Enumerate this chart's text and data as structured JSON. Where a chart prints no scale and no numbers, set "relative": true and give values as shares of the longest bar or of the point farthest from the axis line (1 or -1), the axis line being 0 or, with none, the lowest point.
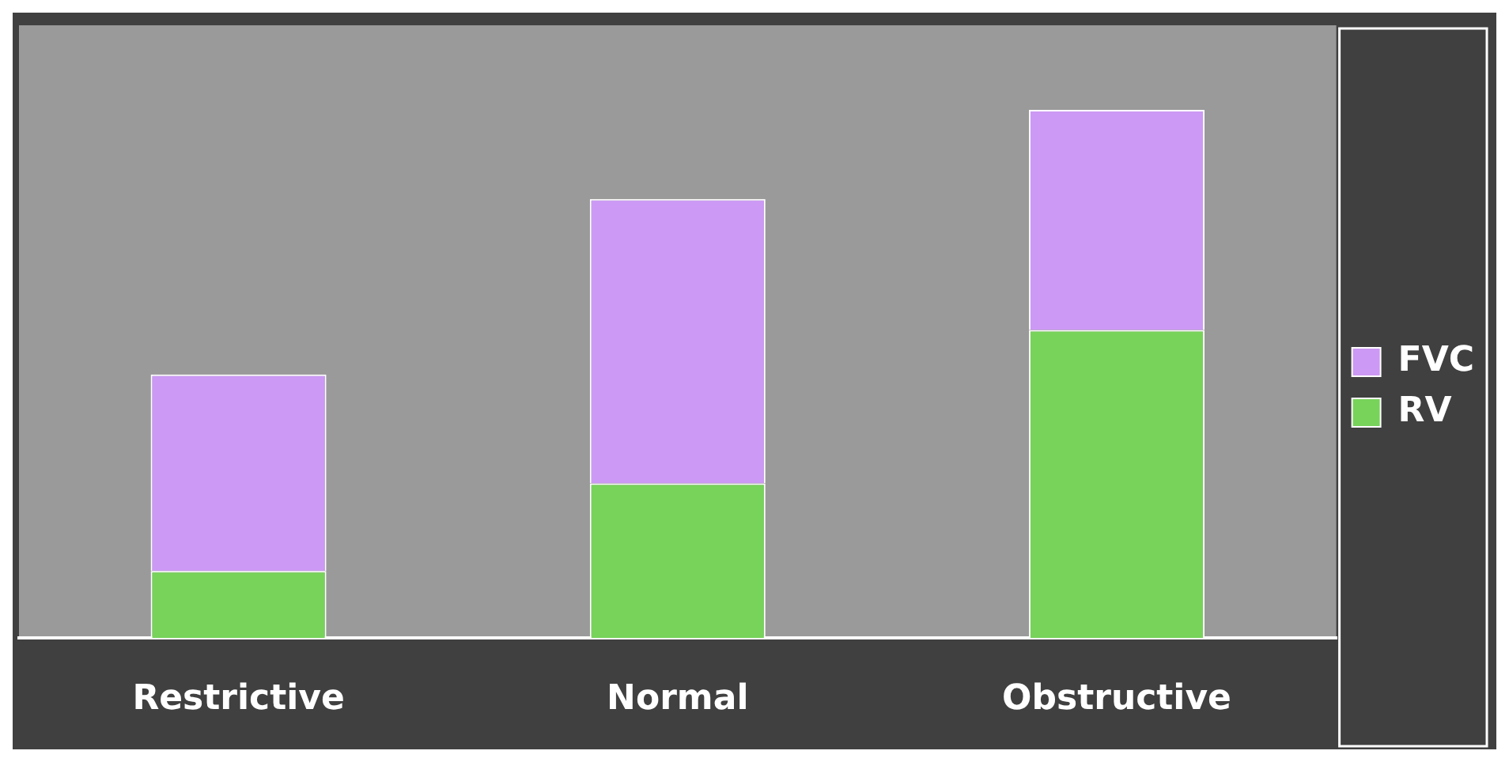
{
  "chart_data": {
    "type": "bar",
    "stacked": true,
    "relative": true,
    "legend": "right",
    "categories": [
      "Restrictive",
      "Normal",
      "Obstructive"
    ],
    "series": [
      {
        "name": "RV",
        "color": "#77d35a",
        "values": [
          0.127,
          0.293,
          0.583
        ]
      },
      {
        "name": "FVC",
        "color": "#cc99f5",
        "values": [
          0.372,
          0.538,
          0.417
        ]
      }
    ]
  }
}
